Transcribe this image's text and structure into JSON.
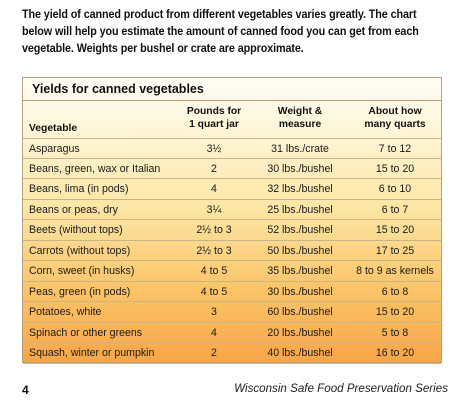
{
  "intro": "The yield of canned product from different vegetables varies greatly. The chart below will help you estimate the amount of canned food you can get from each vegetable. Weights per bushel or crate are approximate.",
  "table": {
    "title": "Yields for canned vegetables",
    "headers": [
      "Vegetable",
      "Pounds for 1 quart jar",
      "Weight & measure",
      "About how many quarts"
    ],
    "rows": [
      [
        "Asparagus",
        "3½",
        "31 lbs./crate",
        "7 to 12"
      ],
      [
        "Beans, green, wax or Italian",
        "2",
        "30 lbs./bushel",
        "15 to 20"
      ],
      [
        "Beans, lima (in pods)",
        "4",
        "32 lbs./bushel",
        "6 to 10"
      ],
      [
        "Beans or peas, dry",
        "3¼",
        "25 lbs./bushel",
        "6 to 7"
      ],
      [
        "Beets (without tops)",
        "2½ to 3",
        "52 lbs./bushel",
        "15 to 20"
      ],
      [
        "Carrots (without tops)",
        "2½ to 3",
        "50 lbs./bushel",
        "17 to 25"
      ],
      [
        "Corn, sweet (in husks)",
        "4 to 5",
        "35 lbs./bushel",
        "8 to 9 as kernels"
      ],
      [
        "Peas, green (in pods)",
        "4 to 5",
        "30 lbs./bushel",
        "6 to 8"
      ],
      [
        "Potatoes, white",
        "3",
        "60 lbs./bushel",
        "15 to 20"
      ],
      [
        "Spinach or other greens",
        "4",
        "20 lbs./bushel",
        "5 to 8"
      ],
      [
        "Squash, winter or pumpkin",
        "2",
        "40 lbs./bushel",
        "16 to 20"
      ]
    ]
  },
  "footer": {
    "page_number": "4",
    "series": "Wisconsin Safe Food Preservation Series"
  }
}
